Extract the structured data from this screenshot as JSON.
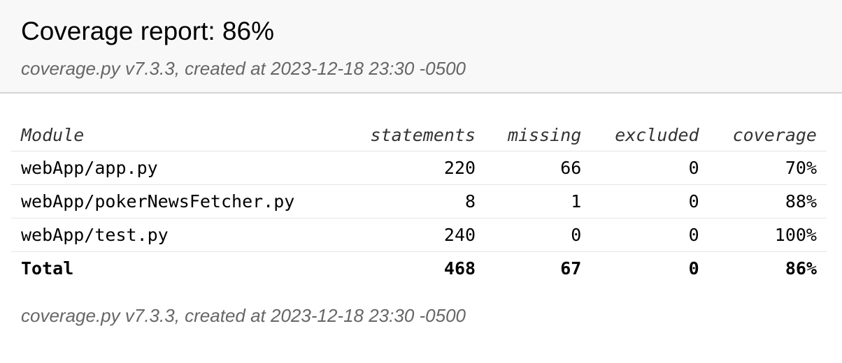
{
  "header": {
    "title": "Coverage report: 86%",
    "subtitle": "coverage.py v7.3.3, created at 2023-12-18 23:30 -0500"
  },
  "table": {
    "columns": [
      "Module",
      "statements",
      "missing",
      "excluded",
      "coverage"
    ],
    "rows": [
      {
        "module": "webApp/app.py",
        "statements": "220",
        "missing": "66",
        "excluded": "0",
        "coverage": "70%"
      },
      {
        "module": "webApp/pokerNewsFetcher.py",
        "statements": "8",
        "missing": "1",
        "excluded": "0",
        "coverage": "88%"
      },
      {
        "module": "webApp/test.py",
        "statements": "240",
        "missing": "0",
        "excluded": "0",
        "coverage": "100%"
      }
    ],
    "total": {
      "label": "Total",
      "statements": "468",
      "missing": "67",
      "excluded": "0",
      "coverage": "86%"
    }
  },
  "footer": {
    "text": "coverage.py v7.3.3, created at 2023-12-18 23:30 -0500"
  }
}
